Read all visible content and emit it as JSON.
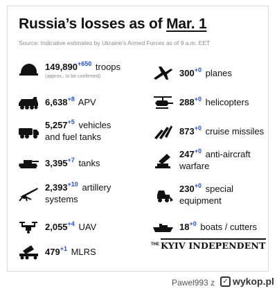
{
  "header": {
    "title_prefix": "Russia’s losses as of ",
    "title_date": "Mar. 1",
    "source": "Source: Indicative estimates by Ukraine’s Armed Forces as of 9 a.m. EET"
  },
  "stats": [
    {
      "num": "149,890",
      "delta": "+650",
      "label": "troops",
      "sub": "(approx., to be confirmed)",
      "icon": "helmet-icon"
    },
    {
      "num": "6,638",
      "delta": "+8",
      "label": "APV",
      "icon": "apv-icon"
    },
    {
      "num": "5,257",
      "delta": "+5",
      "label": "vehicles",
      "label2": "and fuel tanks",
      "icon": "truck-icon"
    },
    {
      "num": "3,395",
      "delta": "+7",
      "label": "tanks",
      "icon": "tank-icon"
    },
    {
      "num": "2,393",
      "delta": "+10",
      "label": "artillery",
      "label2": "systems",
      "icon": "artillery-icon"
    },
    {
      "num": "2,055",
      "delta": "+4",
      "label": "UAV",
      "icon": "drone-icon"
    },
    {
      "num": "479",
      "delta": "+1",
      "label": "MLRS",
      "icon": "mlrs-icon"
    },
    {
      "num": "300",
      "delta": "+0",
      "label": "planes",
      "icon": "plane-icon"
    },
    {
      "num": "288",
      "delta": "+0",
      "label": "helicopters",
      "icon": "helicopter-icon"
    },
    {
      "num": "873",
      "delta": "+0",
      "label": "cruise missiles",
      "icon": "missile-icon"
    },
    {
      "num": "247",
      "delta": "+0",
      "label": "anti-aircraft",
      "label2": "warfare",
      "icon": "anti-aircraft-icon"
    },
    {
      "num": "230",
      "delta": "+0",
      "label": "special",
      "label2": "equipment",
      "icon": "special-equipment-icon"
    },
    {
      "num": "18",
      "delta": "+0",
      "label": "boats / cutters",
      "icon": "boat-icon"
    }
  ],
  "logo": {
    "the": "THE",
    "name": "KYIV INDEPENDENT"
  },
  "footer": {
    "author": "Pawel993",
    "z": "z",
    "brand": "wykop.pl"
  }
}
